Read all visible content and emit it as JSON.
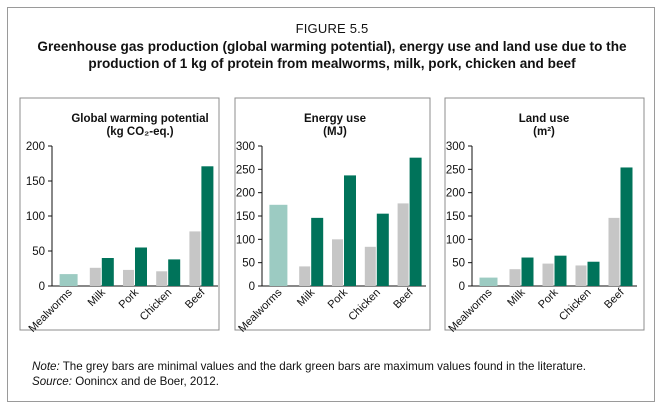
{
  "figure": {
    "label": "FIGURE 5.5",
    "title": "Greenhouse gas production (global warming potential), energy use and land use due to the production of 1 kg of protein from mealworms, milk, pork, chicken and beef"
  },
  "note": {
    "note_label": "Note:",
    "note_text": " The grey bars are minimal values and the dark green bars are maximum values found in the literature.",
    "source_label": "Source:",
    "source_text": " Oonincx and de Boer, 2012."
  },
  "colors": {
    "mealworm": "#9ccbc2",
    "minimum": "#c6c6c6",
    "maximum": "#00735a",
    "axis": "#111111",
    "panel_border": "#8c8c8c"
  },
  "chart_data": [
    {
      "type": "bar",
      "title_lines": [
        "Global warming potential",
        "(kg CO₂-eq.)"
      ],
      "categories": [
        "Mealworms",
        "Milk",
        "Pork",
        "Chicken",
        "Beef"
      ],
      "series": [
        {
          "role": "min",
          "values": [
            17,
            26,
            23,
            21,
            78
          ]
        },
        {
          "role": "max",
          "values": [
            null,
            40,
            55,
            38,
            171
          ]
        }
      ],
      "ylim": [
        0,
        200
      ],
      "yticks": [
        0,
        50,
        100,
        150,
        200
      ],
      "grid": false
    },
    {
      "type": "bar",
      "title_lines": [
        "Energy use",
        "(MJ)"
      ],
      "categories": [
        "Mealworms",
        "Milk",
        "Pork",
        "Chicken",
        "Beef"
      ],
      "series": [
        {
          "role": "min",
          "values": [
            174,
            42,
            100,
            84,
            177
          ]
        },
        {
          "role": "max",
          "values": [
            null,
            146,
            237,
            155,
            275
          ]
        }
      ],
      "ylim": [
        0,
        300
      ],
      "yticks": [
        0,
        50,
        100,
        150,
        200,
        250,
        300
      ],
      "grid": false
    },
    {
      "type": "bar",
      "title_lines": [
        "Land use",
        "(m²)"
      ],
      "categories": [
        "Mealworms",
        "Milk",
        "Pork",
        "Chicken",
        "Beef"
      ],
      "series": [
        {
          "role": "min",
          "values": [
            18,
            36,
            48,
            44,
            146
          ]
        },
        {
          "role": "max",
          "values": [
            null,
            61,
            65,
            52,
            254
          ]
        }
      ],
      "ylim": [
        0,
        300
      ],
      "yticks": [
        0,
        50,
        100,
        150,
        200,
        250,
        300
      ],
      "grid": false
    }
  ]
}
